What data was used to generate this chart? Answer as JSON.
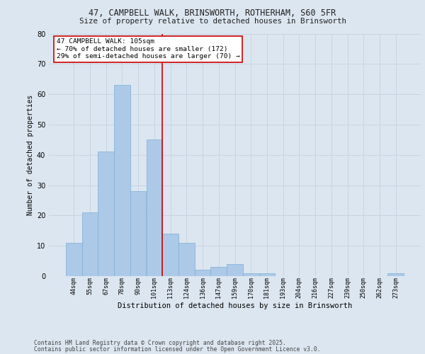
{
  "title_line1": "47, CAMPBELL WALK, BRINSWORTH, ROTHERHAM, S60 5FR",
  "title_line2": "Size of property relative to detached houses in Brinsworth",
  "xlabel": "Distribution of detached houses by size in Brinsworth",
  "ylabel": "Number of detached properties",
  "categories": [
    "44sqm",
    "55sqm",
    "67sqm",
    "78sqm",
    "90sqm",
    "101sqm",
    "113sqm",
    "124sqm",
    "136sqm",
    "147sqm",
    "159sqm",
    "170sqm",
    "181sqm",
    "193sqm",
    "204sqm",
    "216sqm",
    "227sqm",
    "239sqm",
    "250sqm",
    "262sqm",
    "273sqm"
  ],
  "values": [
    11,
    21,
    41,
    63,
    28,
    45,
    14,
    11,
    2,
    3,
    4,
    1,
    1,
    0,
    0,
    0,
    0,
    0,
    0,
    0,
    1
  ],
  "bar_color": "#adc9e8",
  "bar_edge_color": "#7aafd4",
  "grid_color": "#c8d4e4",
  "background_color": "#dce6f0",
  "red_line_x": 5.5,
  "annotation_title": "47 CAMPBELL WALK: 105sqm",
  "annotation_line1": "← 70% of detached houses are smaller (172)",
  "annotation_line2": "29% of semi-detached houses are larger (70) →",
  "annotation_box_color": "#ffffff",
  "annotation_box_edge": "#cc0000",
  "red_line_color": "#cc0000",
  "ylim": [
    0,
    80
  ],
  "yticks": [
    0,
    10,
    20,
    30,
    40,
    50,
    60,
    70,
    80
  ],
  "footer_line1": "Contains HM Land Registry data © Crown copyright and database right 2025.",
  "footer_line2": "Contains public sector information licensed under the Open Government Licence v3.0."
}
